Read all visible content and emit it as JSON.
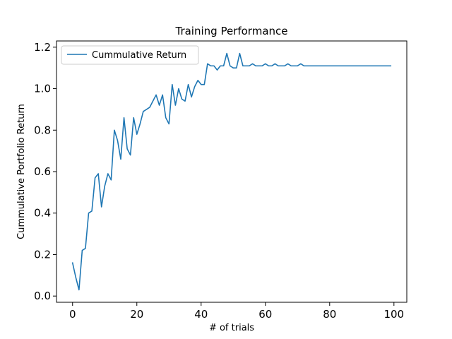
{
  "chart_data": {
    "type": "line",
    "title": "Training Performance",
    "xlabel": "# of trials",
    "ylabel": "Cummulative Portfolio Return",
    "xlim": [
      -5,
      104
    ],
    "ylim": [
      -0.03,
      1.23
    ],
    "xticks": [
      0,
      20,
      40,
      60,
      80,
      100
    ],
    "xtick_labels": [
      "0",
      "20",
      "40",
      "60",
      "80",
      "100"
    ],
    "yticks": [
      0.0,
      0.2,
      0.4,
      0.6,
      0.8,
      1.0,
      1.2
    ],
    "ytick_labels": [
      "0.0",
      "0.2",
      "0.4",
      "0.6",
      "0.8",
      "1.0",
      "1.2"
    ],
    "grid": false,
    "legend_position": "top-left",
    "series": [
      {
        "name": "Cummulative Return",
        "color": "#1f77b4",
        "x": [
          0,
          1,
          2,
          3,
          4,
          5,
          6,
          7,
          8,
          9,
          10,
          11,
          12,
          13,
          14,
          15,
          16,
          17,
          18,
          19,
          20,
          21,
          22,
          23,
          24,
          25,
          26,
          27,
          28,
          29,
          30,
          31,
          32,
          33,
          34,
          35,
          36,
          37,
          38,
          39,
          40,
          41,
          42,
          43,
          44,
          45,
          46,
          47,
          48,
          49,
          50,
          51,
          52,
          53,
          54,
          55,
          56,
          57,
          58,
          59,
          60,
          61,
          62,
          63,
          64,
          65,
          66,
          67,
          68,
          69,
          70,
          71,
          72,
          73,
          74,
          75,
          76,
          77,
          78,
          79,
          80,
          81,
          82,
          83,
          84,
          85,
          86,
          87,
          88,
          89,
          90,
          91,
          92,
          93,
          94,
          95,
          96,
          97,
          98,
          99
        ],
        "values": [
          0.16,
          0.09,
          0.03,
          0.22,
          0.23,
          0.4,
          0.41,
          0.57,
          0.59,
          0.43,
          0.53,
          0.59,
          0.56,
          0.8,
          0.75,
          0.66,
          0.86,
          0.71,
          0.68,
          0.86,
          0.78,
          0.83,
          0.89,
          0.9,
          0.91,
          0.94,
          0.97,
          0.92,
          0.97,
          0.86,
          0.83,
          1.02,
          0.92,
          1.0,
          0.95,
          0.94,
          1.02,
          0.96,
          1.01,
          1.04,
          1.02,
          1.02,
          1.12,
          1.11,
          1.11,
          1.09,
          1.11,
          1.11,
          1.17,
          1.11,
          1.1,
          1.1,
          1.17,
          1.11,
          1.11,
          1.11,
          1.12,
          1.11,
          1.11,
          1.11,
          1.12,
          1.11,
          1.11,
          1.12,
          1.11,
          1.11,
          1.11,
          1.12,
          1.11,
          1.11,
          1.11,
          1.12,
          1.11,
          1.11,
          1.11,
          1.11,
          1.11,
          1.11,
          1.11,
          1.11,
          1.11,
          1.11,
          1.11,
          1.11,
          1.11,
          1.11,
          1.11,
          1.11,
          1.11,
          1.11,
          1.11,
          1.11,
          1.11,
          1.11,
          1.11,
          1.11,
          1.11,
          1.11,
          1.11,
          1.11
        ]
      }
    ]
  }
}
